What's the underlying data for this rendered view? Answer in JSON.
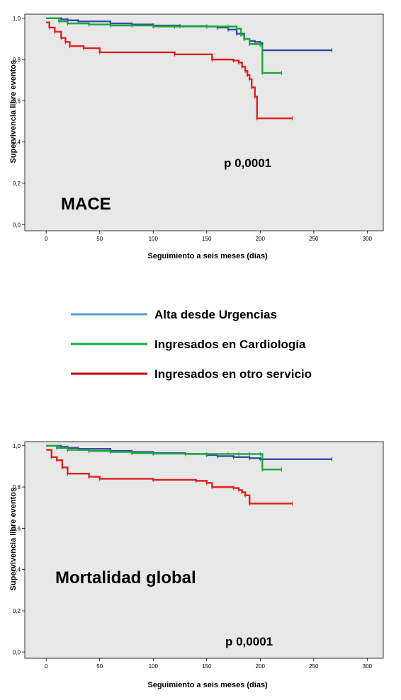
{
  "legend": [
    {
      "label": "Alta desde Urgencias",
      "color": "#5b9bd5"
    },
    {
      "label": "Ingresados en Cardiología",
      "color": "#19a83b"
    },
    {
      "label": "Ingresados en otro servicio",
      "color": "#c00000"
    }
  ],
  "chart_data": [
    {
      "type": "line",
      "step": true,
      "annotation": "MACE",
      "pvalue": "p 0,0001",
      "xlabel": "Seguimiento a seis meses (días)",
      "ylabel": "Supervivencia libre eventos",
      "xlim": [
        -20,
        315
      ],
      "ylim": [
        -0.03,
        1.02
      ],
      "xticks": [
        0,
        50,
        100,
        150,
        200,
        250,
        300
      ],
      "yticks": [
        0.0,
        0.2,
        0.4,
        0.6,
        0.8,
        1.0
      ],
      "ytick_labels": [
        "0,0",
        "0,2",
        "0,4",
        "0,6",
        "0,8",
        "1,0"
      ],
      "grid": false,
      "background": "#e8e8e8",
      "series": [
        {
          "color": "#3b4ba8",
          "x": [
            0,
            14,
            20,
            30,
            60,
            80,
            100,
            125,
            150,
            160,
            170,
            178,
            185,
            190,
            195,
            200,
            202,
            267
          ],
          "y": [
            1.0,
            0.995,
            0.99,
            0.985,
            0.975,
            0.97,
            0.965,
            0.962,
            0.96,
            0.955,
            0.945,
            0.925,
            0.9,
            0.89,
            0.885,
            0.88,
            0.845,
            0.845
          ]
        },
        {
          "color": "#19a83b",
          "x": [
            0,
            12,
            20,
            40,
            60,
            80,
            100,
            120,
            150,
            170,
            178,
            182,
            185,
            190,
            200,
            202,
            220
          ],
          "y": [
            1.0,
            0.985,
            0.975,
            0.97,
            0.965,
            0.965,
            0.96,
            0.96,
            0.96,
            0.96,
            0.95,
            0.92,
            0.9,
            0.875,
            0.87,
            0.735,
            0.735
          ]
        },
        {
          "color": "#e02020",
          "x": [
            0,
            3,
            8,
            14,
            18,
            22,
            35,
            50,
            120,
            155,
            175,
            180,
            183,
            186,
            188,
            190,
            192,
            195,
            197,
            230
          ],
          "y": [
            0.98,
            0.955,
            0.935,
            0.905,
            0.885,
            0.865,
            0.855,
            0.835,
            0.825,
            0.8,
            0.795,
            0.785,
            0.765,
            0.745,
            0.725,
            0.705,
            0.665,
            0.62,
            0.515,
            0.515
          ]
        }
      ]
    },
    {
      "type": "line",
      "step": true,
      "annotation": "Mortalidad global",
      "pvalue": "p 0,0001",
      "xlabel": "Seguimiento a seis meses (días)",
      "ylabel": "Supervivencia libre eventos",
      "xlim": [
        -20,
        315
      ],
      "ylim": [
        -0.03,
        1.02
      ],
      "xticks": [
        0,
        50,
        100,
        150,
        200,
        250,
        300
      ],
      "yticks": [
        0.0,
        0.2,
        0.4,
        0.6,
        0.8,
        1.0
      ],
      "ytick_labels": [
        "0,0",
        "0,2",
        "0,4",
        "0,6",
        "0,8",
        "1,0"
      ],
      "grid": false,
      "background": "#e8e8e8",
      "series": [
        {
          "color": "#3b4ba8",
          "x": [
            0,
            14,
            20,
            30,
            60,
            80,
            100,
            130,
            150,
            160,
            175,
            190,
            200,
            267
          ],
          "y": [
            1.0,
            0.995,
            0.99,
            0.985,
            0.975,
            0.97,
            0.965,
            0.96,
            0.955,
            0.95,
            0.945,
            0.94,
            0.935,
            0.935
          ]
        },
        {
          "color": "#19a83b",
          "x": [
            0,
            10,
            20,
            40,
            60,
            80,
            100,
            130,
            150,
            170,
            180,
            190,
            200,
            202,
            220
          ],
          "y": [
            1.0,
            0.99,
            0.98,
            0.975,
            0.97,
            0.965,
            0.962,
            0.96,
            0.96,
            0.96,
            0.96,
            0.96,
            0.96,
            0.885,
            0.885
          ]
        },
        {
          "color": "#e02020",
          "x": [
            0,
            5,
            10,
            15,
            20,
            40,
            50,
            100,
            140,
            150,
            155,
            175,
            180,
            183,
            186,
            190,
            230
          ],
          "y": [
            0.98,
            0.945,
            0.93,
            0.895,
            0.865,
            0.85,
            0.84,
            0.835,
            0.83,
            0.82,
            0.8,
            0.795,
            0.785,
            0.775,
            0.76,
            0.72,
            0.72
          ]
        }
      ]
    }
  ]
}
